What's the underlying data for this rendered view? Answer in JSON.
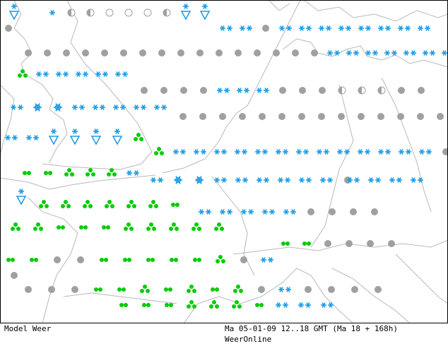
{
  "footer": {
    "model_label": "Model Weer",
    "valid_time": "Ma 05-01-09 12..18 GMT (Ma 18 + 168h)",
    "credit": "WeerOnline"
  },
  "colors": {
    "snow": "#1a9be6",
    "rain": "#00cc00",
    "cloud": "#a0a0a0",
    "coast": "#b8b8b8",
    "frame": "#000000"
  },
  "legend_symbols": {
    "snow": "snowflake-icon",
    "heavy_snow": "large-snowflake-icon",
    "snow_shower": "snow-shower-triangle-icon",
    "rain": "rain-drops-icon",
    "cloudy": "cloud-dot-icon",
    "partly_cloudy": "half-sun-icon",
    "clear": "clear-circle-icon"
  }
}
